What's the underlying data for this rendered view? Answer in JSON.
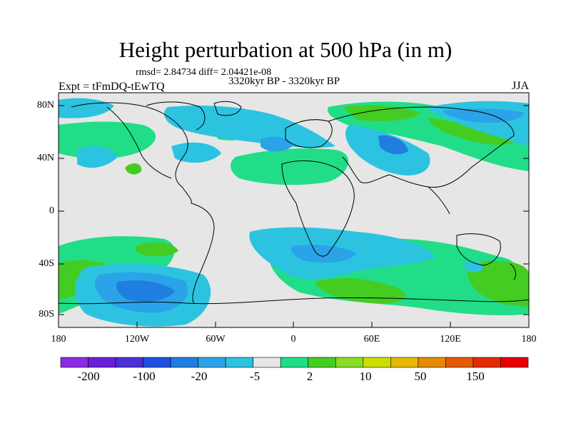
{
  "title": "Height perturbation at 500 hPa (in m)",
  "stats": "rmsd= 2.84734 diff= 2.04421e-08",
  "periods": "3320kyr BP - 3320kyr BP",
  "experiment": "Expt = tFmDQ-tEwTQ",
  "season": "JJA",
  "lat_labels": [
    "80N",
    "40N",
    "0",
    "40S",
    "80S"
  ],
  "lon_labels": [
    "180",
    "120W",
    "60W",
    "0",
    "60E",
    "120E",
    "180"
  ],
  "colorbar": {
    "colors": [
      "#8a2be2",
      "#6a1fd6",
      "#4b2fd8",
      "#1f4fe0",
      "#1f7ee0",
      "#2aa3e8",
      "#2cc3e0",
      "#e6e6e6",
      "#22dd88",
      "#44cc22",
      "#88dd22",
      "#ccdd00",
      "#e6b800",
      "#e68a00",
      "#e65a00",
      "#e62a00",
      "#e60000"
    ],
    "labels": [
      "-200",
      "-100",
      "-20",
      "-5",
      "2",
      "10",
      "50",
      "150"
    ]
  },
  "field_colors": {
    "background": "#e6e6e6",
    "light_positive": "#22dd88",
    "positive": "#44cc22",
    "light_negative": "#2cc3e0",
    "negative": "#2aa3e8",
    "strong_negative": "#1f7ee0"
  }
}
